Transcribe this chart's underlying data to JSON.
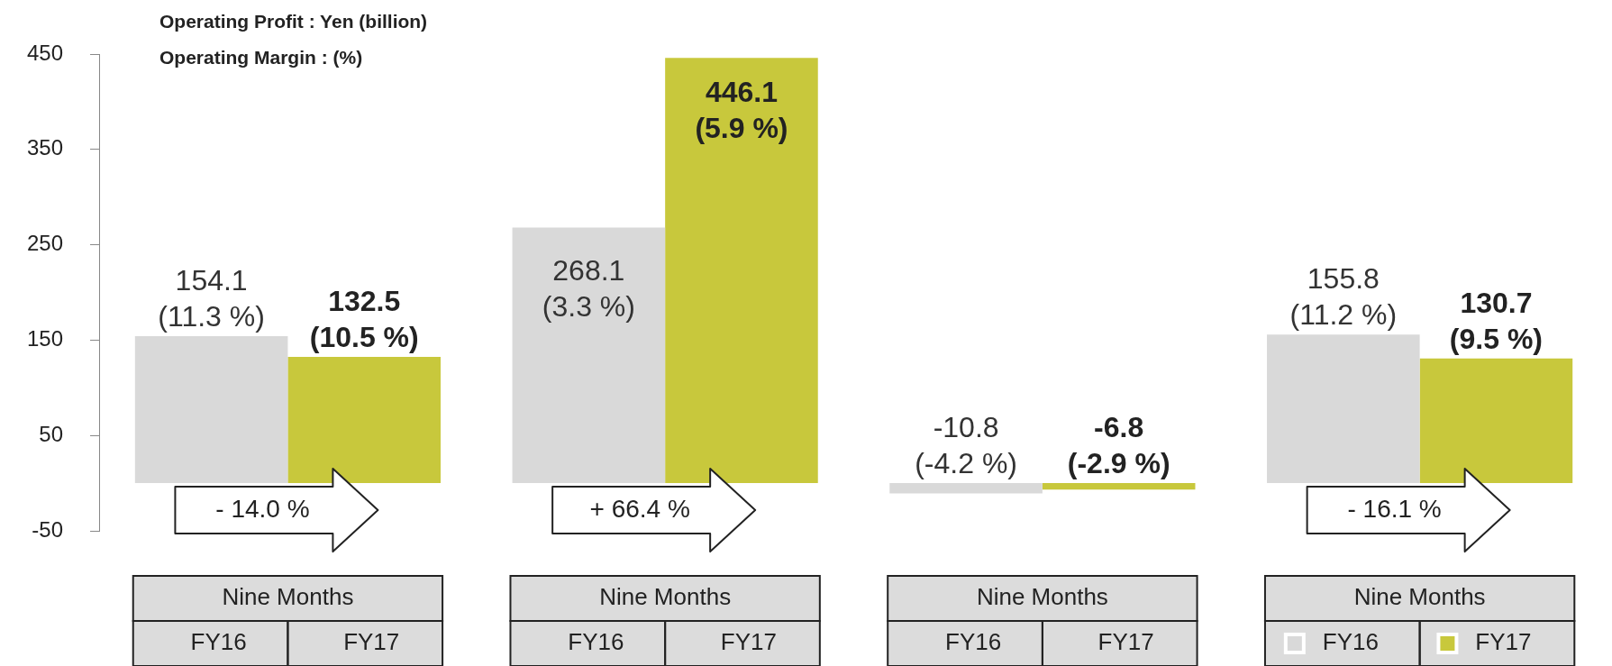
{
  "chart_data": {
    "type": "bar",
    "title": "Operating Profit : Yen (billion)",
    "subtitle": "Operating Margin : (%)",
    "categories": [
      "Nine Months",
      "Nine Months",
      "Nine Months",
      "Nine Months"
    ],
    "series": [
      {
        "name": "FY16",
        "color": "#d9d9d9",
        "values": [
          154.1,
          268.1,
          -10.8,
          155.8
        ],
        "value_labels": [
          "154.1\n(11.3 %)",
          "268.1\n(3.3 %)",
          "-10.8\n(-4.2 %)",
          "155.8\n(11.2 %)"
        ]
      },
      {
        "name": "FY17",
        "color": "#c8c83c",
        "values": [
          132.5,
          446.1,
          -6.8,
          130.7
        ],
        "value_labels": [
          "132.5\n(10.5 %)",
          "446.1\n(5.9 %)",
          "-6.8\n(-2.9 %)",
          "130.7\n(9.5 %)"
        ]
      }
    ],
    "annotations": [
      "- 14.0 %",
      "+ 66.4 %",
      "- 16.1 %"
    ],
    "ylim": [
      -50,
      450
    ],
    "yticks": [
      -50,
      50,
      150,
      250,
      350,
      450
    ],
    "grid": false,
    "legend": "bottom"
  }
}
